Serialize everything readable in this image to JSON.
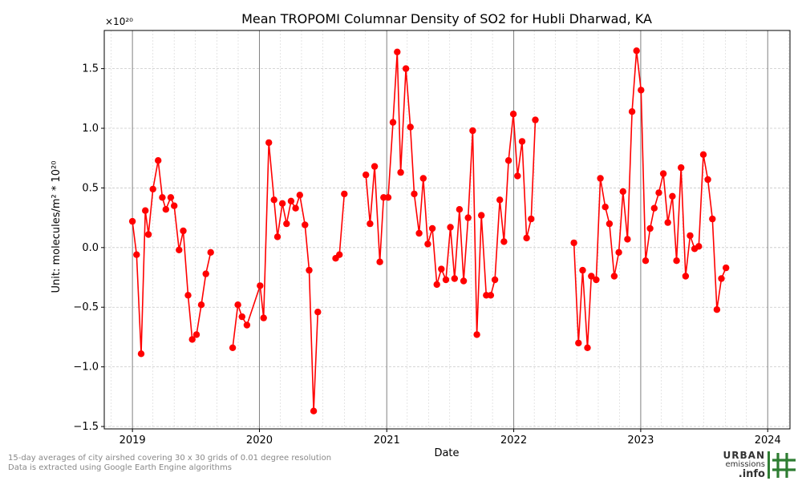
{
  "chart_data": {
    "type": "line",
    "title": "Mean TROPOMI Columnar Density of SO2 for Hubli Dharwad, KA",
    "xlabel": "Date",
    "ylabel": "Unit: molecules/m² * 10²⁰",
    "y_exponent_label": "×10²⁰",
    "xlim": [
      "2018-10-12",
      "2024-03-05"
    ],
    "ylim": [
      -1.52,
      1.82
    ],
    "x_ticks": [
      "2019",
      "2020",
      "2021",
      "2022",
      "2023",
      "2024"
    ],
    "y_ticks": [
      -1.5,
      -1.0,
      -0.5,
      0.0,
      0.5,
      1.0,
      1.5
    ],
    "y_tick_labels": [
      "−1.5",
      "−1.0",
      "−0.5",
      "0.0",
      "0.5",
      "1.0",
      "1.5"
    ],
    "grid": true,
    "legend": "none",
    "color": "#ff0000",
    "segments": [
      [
        [
          "2019-01-01",
          0.22
        ],
        [
          "2019-01-13",
          -0.06
        ],
        [
          "2019-01-26",
          -0.89
        ],
        [
          "2019-02-07",
          0.31
        ],
        [
          "2019-02-16",
          0.11
        ],
        [
          "2019-03-01",
          0.49
        ],
        [
          "2019-03-16",
          0.73
        ],
        [
          "2019-03-28",
          0.42
        ],
        [
          "2019-04-07",
          0.32
        ],
        [
          "2019-04-21",
          0.42
        ],
        [
          "2019-05-01",
          0.35
        ],
        [
          "2019-05-15",
          -0.02
        ],
        [
          "2019-05-27",
          0.14
        ],
        [
          "2019-06-10",
          -0.4
        ],
        [
          "2019-06-22",
          -0.77
        ],
        [
          "2019-07-04",
          -0.73
        ],
        [
          "2019-07-18",
          -0.48
        ],
        [
          "2019-07-31",
          -0.22
        ],
        [
          "2019-08-14",
          -0.04
        ]
      ],
      [
        [
          "2019-10-16",
          -0.84
        ],
        [
          "2019-10-31",
          -0.48
        ],
        [
          "2019-11-12",
          -0.58
        ],
        [
          "2019-11-26",
          -0.65
        ],
        [
          "2020-01-03",
          -0.32
        ],
        [
          "2020-01-13",
          -0.59
        ],
        [
          "2020-01-28",
          0.88
        ],
        [
          "2020-02-12",
          0.4
        ],
        [
          "2020-02-22",
          0.09
        ],
        [
          "2020-03-07",
          0.37
        ],
        [
          "2020-03-19",
          0.2
        ],
        [
          "2020-04-01",
          0.39
        ],
        [
          "2020-04-14",
          0.33
        ],
        [
          "2020-04-26",
          0.44
        ],
        [
          "2020-05-11",
          0.19
        ],
        [
          "2020-05-23",
          -0.19
        ],
        [
          "2020-06-05",
          -1.37
        ],
        [
          "2020-06-17",
          -0.54
        ]
      ],
      [
        [
          "2020-08-07",
          -0.09
        ],
        [
          "2020-08-18",
          -0.06
        ],
        [
          "2020-09-01",
          0.45
        ]
      ],
      [
        [
          "2020-11-02",
          0.61
        ],
        [
          "2020-11-14",
          0.2
        ],
        [
          "2020-11-27",
          0.68
        ],
        [
          "2020-12-12",
          -0.12
        ],
        [
          "2020-12-23",
          0.42
        ],
        [
          "2021-01-05",
          0.42
        ],
        [
          "2021-01-19",
          1.05
        ],
        [
          "2021-01-31",
          1.64
        ],
        [
          "2021-02-10",
          0.63
        ],
        [
          "2021-02-25",
          1.5
        ],
        [
          "2021-03-10",
          1.01
        ],
        [
          "2021-03-21",
          0.45
        ],
        [
          "2021-04-04",
          0.12
        ],
        [
          "2021-04-16",
          0.58
        ],
        [
          "2021-04-29",
          0.03
        ],
        [
          "2021-05-12",
          0.16
        ],
        [
          "2021-05-25",
          -0.31
        ],
        [
          "2021-06-07",
          -0.18
        ],
        [
          "2021-06-20",
          -0.27
        ],
        [
          "2021-07-03",
          0.17
        ],
        [
          "2021-07-15",
          -0.26
        ],
        [
          "2021-07-29",
          0.32
        ],
        [
          "2021-08-10",
          -0.28
        ],
        [
          "2021-08-23",
          0.25
        ],
        [
          "2021-09-05",
          0.98
        ],
        [
          "2021-09-17",
          -0.73
        ],
        [
          "2021-09-30",
          0.27
        ],
        [
          "2021-10-14",
          -0.4
        ],
        [
          "2021-10-27",
          -0.4
        ],
        [
          "2021-11-08",
          -0.27
        ],
        [
          "2021-11-22",
          0.4
        ],
        [
          "2021-12-04",
          0.05
        ],
        [
          "2021-12-17",
          0.73
        ],
        [
          "2021-12-31",
          1.12
        ],
        [
          "2022-01-12",
          0.6
        ],
        [
          "2022-01-25",
          0.89
        ],
        [
          "2022-02-07",
          0.08
        ],
        [
          "2022-02-20",
          0.24
        ],
        [
          "2022-03-04",
          1.07
        ]
      ],
      [
        [
          "2022-06-23",
          0.04
        ],
        [
          "2022-07-06",
          -0.8
        ],
        [
          "2022-07-18",
          -0.19
        ],
        [
          "2022-08-01",
          -0.84
        ],
        [
          "2022-08-12",
          -0.24
        ],
        [
          "2022-08-26",
          -0.27
        ],
        [
          "2022-09-07",
          0.58
        ],
        [
          "2022-09-21",
          0.34
        ],
        [
          "2022-10-03",
          0.2
        ],
        [
          "2022-10-17",
          -0.24
        ],
        [
          "2022-10-30",
          -0.04
        ],
        [
          "2022-11-11",
          0.47
        ],
        [
          "2022-11-24",
          0.07
        ],
        [
          "2022-12-07",
          1.14
        ],
        [
          "2022-12-20",
          1.65
        ],
        [
          "2023-01-02",
          1.32
        ],
        [
          "2023-01-15",
          -0.11
        ],
        [
          "2023-01-28",
          0.16
        ],
        [
          "2023-02-09",
          0.33
        ],
        [
          "2023-02-22",
          0.46
        ],
        [
          "2023-03-07",
          0.62
        ],
        [
          "2023-03-20",
          0.21
        ],
        [
          "2023-04-02",
          0.43
        ],
        [
          "2023-04-14",
          -0.11
        ],
        [
          "2023-04-27",
          0.67
        ],
        [
          "2023-05-10",
          -0.24
        ],
        [
          "2023-05-23",
          0.1
        ],
        [
          "2023-06-05",
          -0.01
        ],
        [
          "2023-06-17",
          0.01
        ],
        [
          "2023-06-30",
          0.78
        ],
        [
          "2023-07-13",
          0.57
        ],
        [
          "2023-07-26",
          0.24
        ],
        [
          "2023-08-08",
          -0.52
        ],
        [
          "2023-08-21",
          -0.26
        ],
        [
          "2023-09-03",
          -0.17
        ]
      ]
    ]
  },
  "footnote": {
    "line1": "15-day averages of city airshed covering 30 x 30 grids of 0.01 degree resolution",
    "line2": "Data is extracted using Google Earth Engine algorithms"
  },
  "logo": {
    "word1": "URBAN",
    "word2": "emissions",
    "word3": ".info"
  }
}
